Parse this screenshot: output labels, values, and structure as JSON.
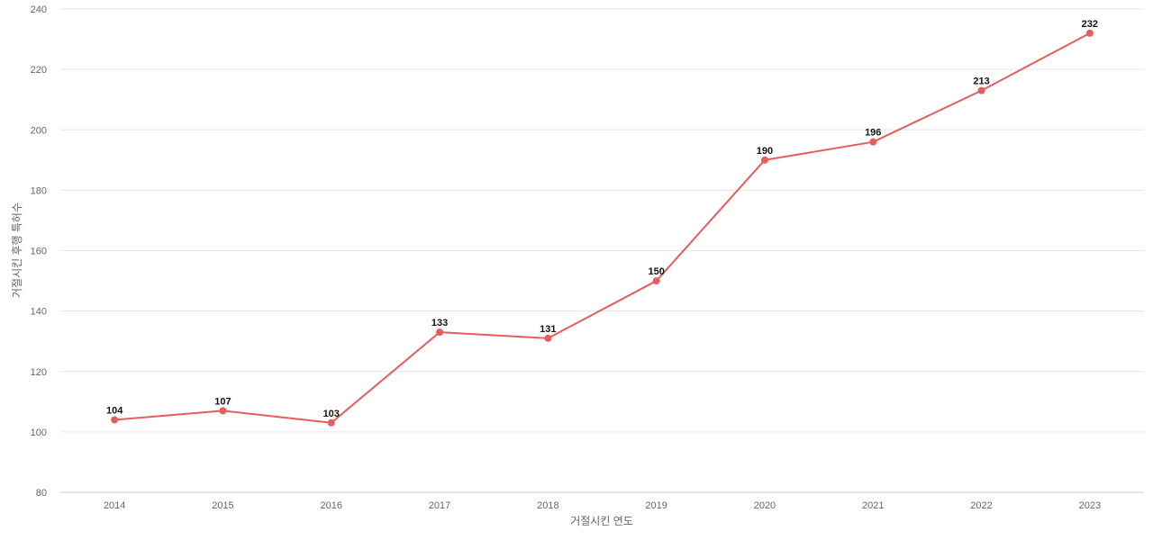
{
  "chart_data": {
    "type": "line",
    "title": "",
    "xlabel": "거절시킨 연도",
    "ylabel": "거절시킨 후행 특허수",
    "x": [
      "2014",
      "2015",
      "2016",
      "2017",
      "2018",
      "2019",
      "2020",
      "2021",
      "2022",
      "2023"
    ],
    "series": [
      {
        "values": [
          104,
          107,
          103,
          133,
          131,
          150,
          190,
          196,
          213,
          232
        ],
        "color": "#e85c5c"
      }
    ],
    "ylim": [
      80,
      240
    ],
    "yticks": [
      80,
      100,
      120,
      140,
      160,
      180,
      200,
      220,
      240
    ],
    "grid": true,
    "data_labels": true,
    "legend": "none"
  }
}
